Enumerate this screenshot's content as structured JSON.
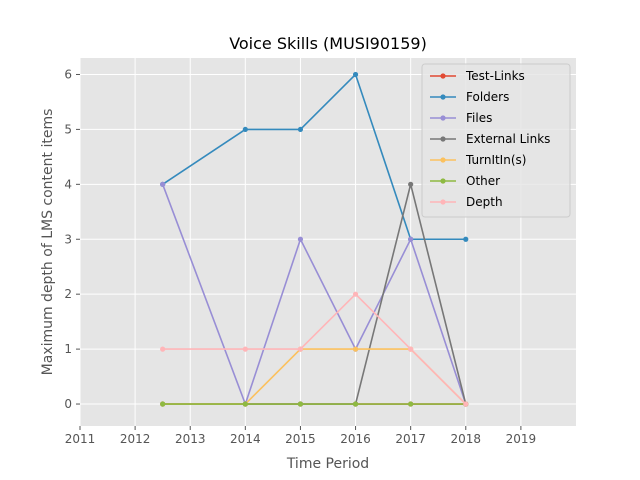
{
  "chart_data": {
    "type": "line",
    "title": "Voice Skills (MUSI90159)",
    "xlabel": "Time Period",
    "ylabel": "Maximum depth of LMS content items",
    "xlim": [
      2011,
      2020
    ],
    "ylim": [
      -0.4,
      6.3
    ],
    "xticks": [
      2011,
      2012,
      2013,
      2014,
      2015,
      2016,
      2017,
      2018,
      2019
    ],
    "xtick_labels": [
      "2011",
      "2012",
      "2013",
      "2014",
      "2015",
      "2016",
      "2017",
      "2018",
      "2019"
    ],
    "yticks": [
      0,
      1,
      2,
      3,
      4,
      5,
      6
    ],
    "ytick_labels": [
      "0",
      "1",
      "2",
      "3",
      "4",
      "5",
      "6"
    ],
    "grid": true,
    "legend_position": "top-right",
    "x": [
      2012.5,
      2014,
      2015,
      2016,
      2017,
      2018
    ],
    "series": [
      {
        "name": "Test-Links",
        "color": "#E24A33",
        "values": [
          0,
          0,
          0,
          0,
          0,
          0
        ]
      },
      {
        "name": "Folders",
        "color": "#348ABD",
        "values": [
          4,
          5,
          5,
          6,
          3,
          3
        ]
      },
      {
        "name": "Files",
        "color": "#988ED5",
        "values": [
          4,
          0,
          3,
          1,
          3,
          0
        ]
      },
      {
        "name": "External Links",
        "color": "#777777",
        "values": [
          0,
          0,
          0,
          0,
          4,
          0
        ]
      },
      {
        "name": "TurnItIn(s)",
        "color": "#FBC15E",
        "values": [
          0,
          0,
          1,
          1,
          1,
          0
        ]
      },
      {
        "name": "Other",
        "color": "#8EBA42",
        "values": [
          0,
          0,
          0,
          0,
          0,
          0
        ]
      },
      {
        "name": "Depth",
        "color": "#FFB5B8",
        "values": [
          1,
          1,
          1,
          2,
          1,
          0
        ]
      }
    ]
  }
}
